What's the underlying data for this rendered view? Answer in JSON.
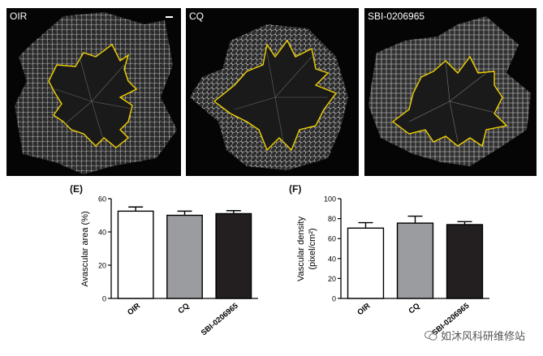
{
  "panels": [
    {
      "label": "OIR"
    },
    {
      "label": "CQ"
    },
    {
      "label": "SBI-0206965"
    }
  ],
  "outline_color": "#f0d000",
  "watermark": {
    "text": "如沐风科研维修站",
    "icon": "wechat-icon"
  },
  "chart_data": [
    {
      "type": "bar",
      "panel_letter": "(E)",
      "categories": [
        "OIR",
        "CQ",
        "SBI-0206965"
      ],
      "values": [
        52.5,
        50.0,
        51.0
      ],
      "errors": [
        2.5,
        2.5,
        1.8
      ],
      "colors": [
        "#ffffff",
        "#9a9ca0",
        "#231f20"
      ],
      "ylabel": "Avascular area (%)",
      "ylim": [
        0,
        60
      ],
      "yticks": [
        "0",
        "20",
        "40",
        "60"
      ],
      "grid": false
    },
    {
      "type": "bar",
      "panel_letter": "(F)",
      "categories": [
        "OIR",
        "CQ",
        "SBI-0206965"
      ],
      "values": [
        70.5,
        75.5,
        74.0
      ],
      "errors": [
        5.5,
        7.0,
        3.0
      ],
      "colors": [
        "#ffffff",
        "#9a9ca0",
        "#231f20"
      ],
      "ylabel_line1": "Vascular density",
      "ylabel_line2": "(pixel/cm²)",
      "ylim": [
        0,
        100
      ],
      "yticks": [
        "0",
        "20",
        "40",
        "60",
        "80",
        "100"
      ],
      "grid": false
    }
  ]
}
